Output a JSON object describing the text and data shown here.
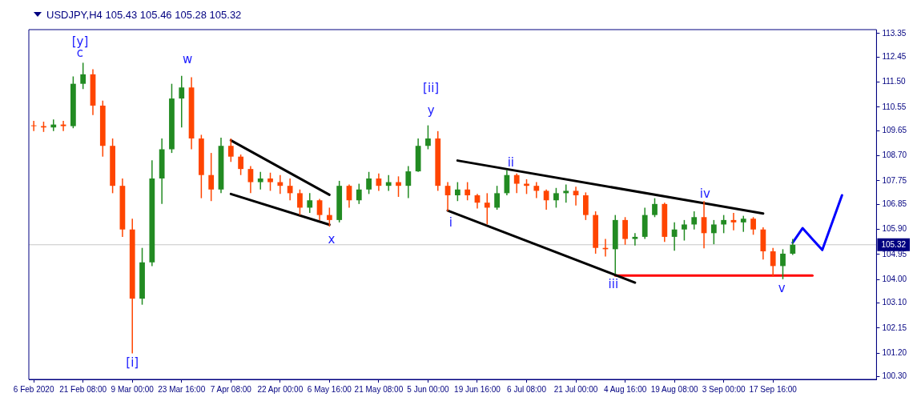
{
  "chart_data": {
    "type": "candlestick",
    "title": "USDJPY,H4 105.43 105.46 105.28 105.32",
    "categories": [
      "6 Feb 2020",
      null,
      null,
      null,
      null,
      "21 Feb 08:00",
      null,
      null,
      null,
      null,
      "9 Mar 00:00",
      null,
      null,
      null,
      null,
      "23 Mar 16:00",
      null,
      null,
      null,
      null,
      "7 Apr 08:00",
      null,
      null,
      null,
      null,
      "22 Apr 00:00",
      null,
      null,
      null,
      null,
      "6 May 16:00",
      null,
      null,
      null,
      null,
      "21 May 08:00",
      null,
      null,
      null,
      null,
      "5 Jun 00:00",
      null,
      null,
      null,
      null,
      "19 Jun 16:00",
      null,
      null,
      null,
      null,
      "6 Jul 08:00",
      null,
      null,
      null,
      null,
      "21 Jul 00:00",
      null,
      null,
      null,
      null,
      "4 Aug 16:00",
      null,
      null,
      null,
      null,
      "19 Aug 08:00",
      null,
      null,
      null,
      null,
      "3 Sep 00:00",
      null,
      null,
      null,
      null,
      "17 Sep 16:00",
      null,
      null,
      null,
      null,
      null,
      null,
      null,
      null,
      null,
      null
    ],
    "ohlc": [
      [
        109.86,
        110.03,
        109.64,
        109.83
      ],
      [
        109.83,
        110.0,
        109.61,
        109.78
      ],
      [
        109.78,
        110.08,
        109.64,
        109.89
      ],
      [
        109.89,
        110.03,
        109.64,
        109.83
      ],
      [
        109.83,
        111.72,
        109.75,
        111.44
      ],
      [
        111.44,
        112.24,
        111.24,
        111.8
      ],
      [
        111.8,
        111.99,
        110.25,
        110.61
      ],
      [
        110.61,
        110.8,
        108.67,
        109.08
      ],
      [
        109.08,
        109.36,
        107.28,
        107.56
      ],
      [
        107.56,
        107.84,
        105.62,
        105.9
      ],
      [
        105.9,
        106.31,
        101.19,
        103.27
      ],
      [
        103.27,
        105.2,
        103.04,
        104.65
      ],
      [
        104.65,
        108.53,
        104.51,
        107.84
      ],
      [
        107.84,
        109.36,
        106.87,
        108.95
      ],
      [
        108.95,
        111.44,
        108.81,
        110.88
      ],
      [
        110.88,
        111.74,
        109.78,
        111.3
      ],
      [
        111.3,
        111.69,
        108.95,
        109.36
      ],
      [
        109.36,
        109.5,
        107.09,
        107.97
      ],
      [
        107.97,
        108.81,
        106.98,
        107.42
      ],
      [
        107.42,
        109.39,
        107.28,
        109.08
      ],
      [
        109.08,
        109.36,
        108.47,
        108.67
      ],
      [
        108.67,
        108.75,
        107.97,
        108.2
      ],
      [
        108.2,
        108.31,
        107.28,
        107.7
      ],
      [
        107.7,
        108.09,
        107.42,
        107.84
      ],
      [
        107.84,
        108.06,
        107.37,
        107.7
      ],
      [
        107.7,
        107.97,
        107.25,
        107.56
      ],
      [
        107.56,
        107.84,
        107.01,
        107.28
      ],
      [
        107.28,
        107.42,
        106.45,
        106.73
      ],
      [
        106.73,
        107.28,
        106.53,
        107.01
      ],
      [
        107.01,
        107.06,
        106.26,
        106.45
      ],
      [
        106.45,
        106.73,
        106.01,
        106.26
      ],
      [
        106.26,
        107.75,
        106.17,
        107.56
      ],
      [
        107.56,
        107.61,
        106.73,
        107.01
      ],
      [
        107.01,
        107.64,
        106.87,
        107.42
      ],
      [
        107.42,
        108.09,
        107.25,
        107.84
      ],
      [
        107.84,
        108.03,
        107.37,
        107.56
      ],
      [
        107.56,
        107.97,
        107.37,
        107.7
      ],
      [
        107.7,
        107.92,
        107.14,
        107.56
      ],
      [
        107.56,
        108.31,
        107.09,
        108.11
      ],
      [
        108.11,
        109.36,
        108.09,
        109.08
      ],
      [
        109.08,
        109.86,
        108.95,
        109.36
      ],
      [
        109.36,
        109.64,
        107.37,
        107.56
      ],
      [
        107.56,
        107.7,
        106.59,
        107.2
      ],
      [
        107.2,
        107.7,
        106.98,
        107.42
      ],
      [
        107.42,
        107.7,
        107.01,
        107.2
      ],
      [
        107.2,
        107.25,
        106.7,
        106.92
      ],
      [
        106.92,
        107.28,
        106.09,
        106.73
      ],
      [
        106.73,
        107.56,
        106.65,
        107.28
      ],
      [
        107.28,
        108.17,
        107.2,
        107.97
      ],
      [
        107.97,
        108.03,
        107.28,
        107.64
      ],
      [
        107.64,
        107.81,
        107.25,
        107.56
      ],
      [
        107.56,
        107.7,
        107.09,
        107.37
      ],
      [
        107.37,
        107.42,
        106.65,
        107.01
      ],
      [
        107.01,
        107.48,
        106.73,
        107.28
      ],
      [
        107.28,
        107.61,
        106.92,
        107.37
      ],
      [
        107.37,
        107.53,
        106.81,
        107.2
      ],
      [
        107.2,
        107.31,
        106.26,
        106.45
      ],
      [
        106.45,
        106.59,
        104.98,
        105.2
      ],
      [
        105.2,
        105.54,
        104.87,
        105.15
      ],
      [
        105.15,
        106.45,
        104.21,
        106.26
      ],
      [
        106.26,
        106.37,
        105.32,
        105.54
      ],
      [
        105.54,
        105.76,
        105.29,
        105.62
      ],
      [
        105.62,
        106.73,
        105.54,
        106.45
      ],
      [
        106.45,
        107.09,
        106.37,
        106.87
      ],
      [
        106.87,
        106.92,
        105.43,
        105.62
      ],
      [
        105.62,
        106.17,
        105.09,
        105.9
      ],
      [
        105.9,
        106.26,
        105.48,
        106.09
      ],
      [
        106.09,
        106.59,
        105.9,
        106.37
      ],
      [
        106.37,
        106.98,
        105.18,
        105.76
      ],
      [
        105.76,
        106.26,
        105.34,
        106.09
      ],
      [
        106.09,
        106.45,
        105.76,
        106.26
      ],
      [
        106.26,
        106.53,
        105.87,
        106.17
      ],
      [
        106.17,
        106.42,
        105.81,
        106.31
      ],
      [
        106.31,
        106.37,
        105.7,
        105.9
      ],
      [
        105.9,
        105.98,
        104.76,
        105.07
      ],
      [
        105.07,
        105.2,
        104.1,
        104.51
      ],
      [
        104.51,
        105.15,
        104.01,
        104.98
      ],
      [
        104.98,
        105.54,
        104.93,
        105.32
      ],
      null,
      null,
      null,
      null,
      null,
      null,
      null,
      null
    ],
    "series": [
      {
        "type": "line",
        "color": "#000000",
        "values": [
          null,
          null,
          null,
          null,
          null,
          null,
          null,
          null,
          null,
          null,
          null,
          null,
          null,
          null,
          null,
          null,
          null,
          null,
          null,
          null,
          109.29,
          null,
          null,
          null,
          null,
          null,
          null,
          null,
          null,
          null,
          107.22,
          null,
          null,
          null,
          null,
          null,
          null,
          null,
          null,
          null,
          null,
          null,
          null,
          null,
          null,
          null,
          null,
          null,
          null,
          null,
          null,
          null,
          null,
          null,
          null,
          null,
          null,
          null,
          null,
          null,
          null,
          null,
          null,
          null,
          null,
          null,
          null,
          null,
          null,
          null,
          null,
          null,
          null,
          null,
          null,
          null,
          null,
          null,
          null,
          null,
          null,
          null,
          null,
          null,
          null,
          null
        ]
      },
      {
        "type": "line",
        "color": "#000000",
        "values": [
          null,
          null,
          null,
          null,
          null,
          null,
          null,
          null,
          null,
          null,
          null,
          null,
          null,
          null,
          null,
          null,
          null,
          null,
          null,
          null,
          107.25,
          null,
          null,
          null,
          null,
          null,
          null,
          null,
          null,
          null,
          106.08,
          null,
          null,
          null,
          null,
          null,
          null,
          null,
          null,
          null,
          null,
          null,
          null,
          null,
          null,
          null,
          null,
          null,
          null,
          null,
          null,
          null,
          null,
          null,
          null,
          null,
          null,
          null,
          null,
          null,
          null,
          null,
          null,
          null,
          null,
          null,
          null,
          null,
          null,
          null,
          null,
          null,
          null,
          null,
          null,
          null,
          null,
          null,
          null,
          null,
          null,
          null,
          null,
          null,
          null,
          null
        ]
      },
      {
        "type": "line",
        "color": "#000000",
        "values": [
          null,
          null,
          null,
          null,
          null,
          null,
          null,
          null,
          null,
          null,
          null,
          null,
          null,
          null,
          null,
          null,
          null,
          null,
          null,
          null,
          null,
          null,
          null,
          null,
          null,
          null,
          null,
          null,
          null,
          null,
          null,
          null,
          null,
          null,
          null,
          null,
          null,
          null,
          null,
          null,
          null,
          null,
          null,
          108.52,
          null,
          null,
          null,
          null,
          null,
          null,
          null,
          null,
          null,
          null,
          null,
          null,
          null,
          null,
          null,
          null,
          null,
          null,
          null,
          null,
          null,
          null,
          null,
          null,
          null,
          null,
          null,
          null,
          null,
          null,
          106.51,
          null,
          null,
          null,
          null,
          null,
          null,
          null,
          null,
          null,
          null,
          null
        ]
      },
      {
        "type": "line",
        "color": "#000000",
        "values": [
          null,
          null,
          null,
          null,
          null,
          null,
          null,
          null,
          null,
          null,
          null,
          null,
          null,
          null,
          null,
          null,
          null,
          null,
          null,
          null,
          null,
          null,
          null,
          null,
          null,
          null,
          null,
          null,
          null,
          null,
          null,
          null,
          null,
          null,
          null,
          null,
          null,
          null,
          null,
          null,
          null,
          null,
          106.62,
          null,
          null,
          null,
          null,
          null,
          null,
          null,
          null,
          null,
          null,
          null,
          null,
          null,
          null,
          null,
          null,
          null,
          null,
          103.88,
          null,
          null,
          null,
          null,
          null,
          null,
          null,
          null,
          null,
          null,
          null,
          null,
          null,
          null,
          null,
          null,
          null,
          null,
          null,
          null,
          null,
          null,
          null,
          null
        ]
      },
      {
        "type": "line",
        "color": "#ff0000",
        "values": [
          null,
          null,
          null,
          null,
          null,
          null,
          null,
          null,
          null,
          null,
          null,
          null,
          null,
          null,
          null,
          null,
          null,
          null,
          null,
          null,
          null,
          null,
          null,
          null,
          null,
          null,
          null,
          null,
          null,
          null,
          null,
          null,
          null,
          null,
          null,
          null,
          null,
          null,
          null,
          null,
          null,
          null,
          null,
          null,
          null,
          null,
          null,
          null,
          null,
          null,
          null,
          null,
          null,
          null,
          null,
          null,
          null,
          null,
          null,
          104.15,
          null,
          null,
          null,
          null,
          null,
          null,
          null,
          null,
          null,
          null,
          null,
          null,
          null,
          null,
          null,
          null,
          null,
          null,
          null,
          104.15,
          null,
          null,
          null,
          null,
          null,
          null
        ]
      },
      {
        "type": "line",
        "color": "#0000ff",
        "values": [
          null,
          null,
          null,
          null,
          null,
          null,
          null,
          null,
          null,
          null,
          null,
          null,
          null,
          null,
          null,
          null,
          null,
          null,
          null,
          null,
          null,
          null,
          null,
          null,
          null,
          null,
          null,
          null,
          null,
          null,
          null,
          null,
          null,
          null,
          null,
          null,
          null,
          null,
          null,
          null,
          null,
          null,
          null,
          null,
          null,
          null,
          null,
          null,
          null,
          null,
          null,
          null,
          null,
          null,
          null,
          null,
          null,
          null,
          null,
          null,
          null,
          null,
          null,
          null,
          null,
          null,
          null,
          null,
          null,
          null,
          null,
          null,
          null,
          null,
          null,
          null,
          null,
          105.4,
          105.95,
          null,
          105.12,
          null,
          107.2,
          null,
          null,
          null
        ]
      }
    ],
    "ref_lines": [
      {
        "axis": "y",
        "value": 105.32,
        "label": "105.32",
        "color": "#c8c8c8"
      }
    ],
    "annotations": [
      "[y]",
      "c",
      "w",
      "[i]",
      "x",
      "[ii]",
      "y",
      "i",
      "ii",
      "iii",
      "iv",
      "v"
    ],
    "ylim": [
      100.2,
      113.5
    ],
    "yticks": [
      {
        "value": 100.3,
        "label": "100.30"
      },
      {
        "value": 101.2,
        "label": "101.20"
      },
      102.15,
      {
        "value": 103.1,
        "label": "103.10"
      },
      {
        "value": 104,
        "label": "104.00"
      },
      104.95,
      {
        "value": 105.9,
        "label": "105.90"
      },
      106.85,
      107.75,
      {
        "value": 108.7,
        "label": "108.70"
      },
      109.65,
      110.55,
      {
        "value": 111.5,
        "label": "111.50"
      },
      112.45,
      113.35
    ],
    "grid": false,
    "legend": false
  }
}
